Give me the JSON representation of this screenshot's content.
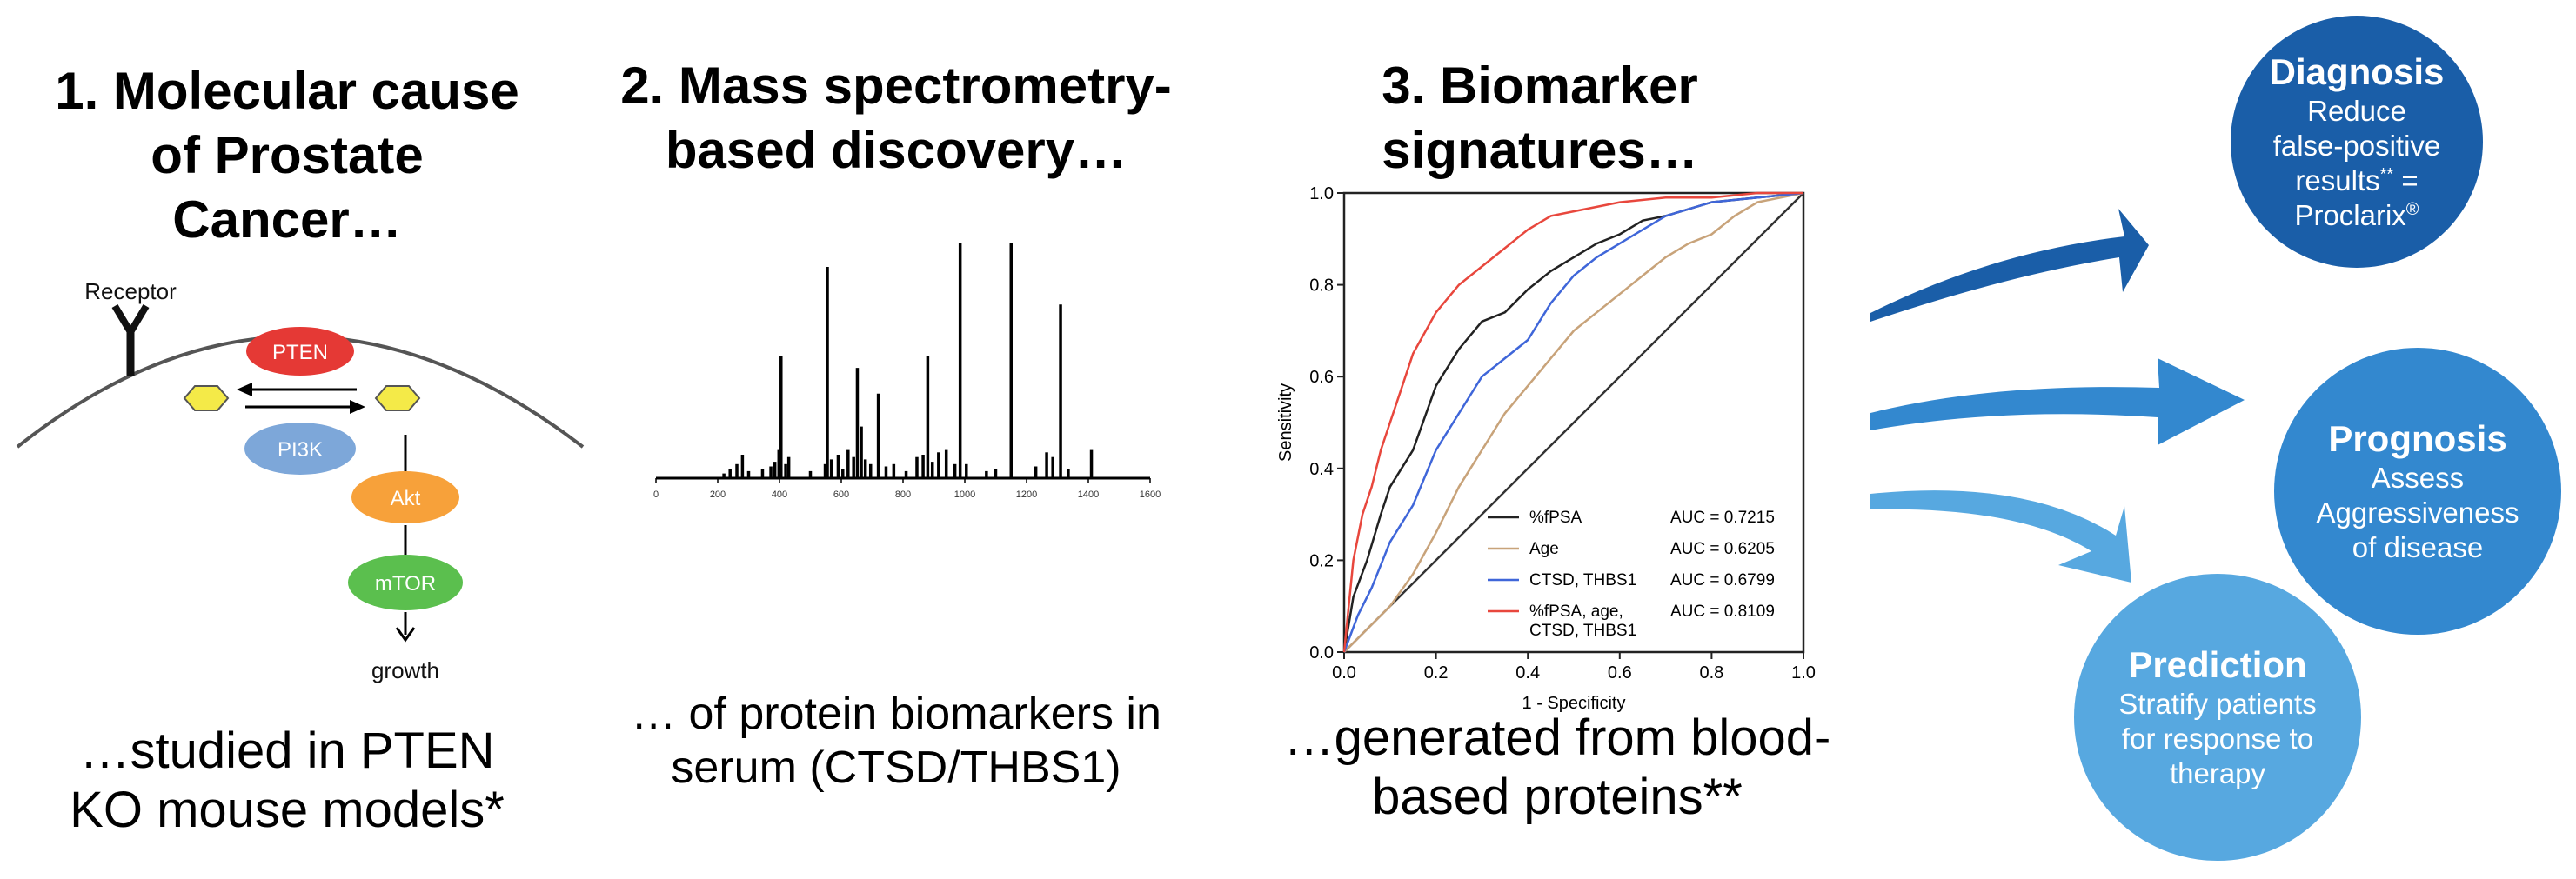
{
  "colors": {
    "diagnosis": "#1a5ea8",
    "prognosis": "#3388cf",
    "prediction": "#57a8e0",
    "pten": "#e53935",
    "pi3k": "#7da7d9",
    "akt": "#f7a13a",
    "mtor": "#5bbf4e",
    "ligand": "#f4ea48",
    "roc_fpsa": "#222222",
    "roc_age": "#c8a37a",
    "roc_ctsd": "#3f66d9",
    "roc_combo": "#e8473d"
  },
  "panel1": {
    "heading": "1. Molecular cause\nof Prostate\nCancer…",
    "receptor_label": "Receptor",
    "pten_label": "PTEN",
    "pi3k_label": "PI3K",
    "akt_label": "Akt",
    "mtor_label": "mTOR",
    "growth_label": "growth",
    "caption": "…studied in PTEN\nKO mouse models*"
  },
  "panel2": {
    "heading": "2. Mass spectrometry-\nbased discovery…",
    "caption": "… of protein biomarkers in\nserum (CTSD/THBS1)",
    "axis_ticks": [
      "0",
      "200",
      "400",
      "600",
      "800",
      "1000",
      "1200",
      "1400",
      "1600"
    ],
    "spectrum": {
      "mz_range": [
        0,
        1600
      ],
      "peaks": [
        {
          "mz": 220,
          "i": 2
        },
        {
          "mz": 240,
          "i": 4
        },
        {
          "mz": 262,
          "i": 6
        },
        {
          "mz": 280,
          "i": 10
        },
        {
          "mz": 300,
          "i": 3
        },
        {
          "mz": 345,
          "i": 4
        },
        {
          "mz": 372,
          "i": 5
        },
        {
          "mz": 385,
          "i": 7
        },
        {
          "mz": 398,
          "i": 12
        },
        {
          "mz": 405,
          "i": 52
        },
        {
          "mz": 420,
          "i": 6
        },
        {
          "mz": 430,
          "i": 9
        },
        {
          "mz": 500,
          "i": 3
        },
        {
          "mz": 548,
          "i": 6
        },
        {
          "mz": 555,
          "i": 90
        },
        {
          "mz": 568,
          "i": 8
        },
        {
          "mz": 590,
          "i": 10
        },
        {
          "mz": 605,
          "i": 4
        },
        {
          "mz": 622,
          "i": 12
        },
        {
          "mz": 640,
          "i": 9
        },
        {
          "mz": 652,
          "i": 47
        },
        {
          "mz": 665,
          "i": 22
        },
        {
          "mz": 678,
          "i": 8
        },
        {
          "mz": 695,
          "i": 6
        },
        {
          "mz": 720,
          "i": 36
        },
        {
          "mz": 745,
          "i": 5
        },
        {
          "mz": 770,
          "i": 6
        },
        {
          "mz": 810,
          "i": 3
        },
        {
          "mz": 845,
          "i": 9
        },
        {
          "mz": 865,
          "i": 10
        },
        {
          "mz": 880,
          "i": 52
        },
        {
          "mz": 895,
          "i": 7
        },
        {
          "mz": 915,
          "i": 11
        },
        {
          "mz": 940,
          "i": 12
        },
        {
          "mz": 968,
          "i": 6
        },
        {
          "mz": 985,
          "i": 100
        },
        {
          "mz": 1005,
          "i": 6
        },
        {
          "mz": 1070,
          "i": 3
        },
        {
          "mz": 1100,
          "i": 4
        },
        {
          "mz": 1150,
          "i": 100
        },
        {
          "mz": 1230,
          "i": 5
        },
        {
          "mz": 1265,
          "i": 11
        },
        {
          "mz": 1285,
          "i": 9
        },
        {
          "mz": 1310,
          "i": 74
        },
        {
          "mz": 1335,
          "i": 4
        },
        {
          "mz": 1410,
          "i": 12
        }
      ]
    }
  },
  "panel3": {
    "heading": "3. Biomarker\nsignatures…",
    "caption": "…generated from blood-\nbased proteins**"
  },
  "chart_data": {
    "type": "line",
    "title": "",
    "xlabel": "1 - Specificity",
    "ylabel": "Sensitivity",
    "xlim": [
      0,
      1
    ],
    "ylim": [
      0,
      1
    ],
    "x_ticks": [
      "0.0",
      "0.2",
      "0.4",
      "0.6",
      "0.8",
      "1.0"
    ],
    "y_ticks": [
      "0.0",
      "0.2",
      "0.4",
      "0.6",
      "0.8",
      "1.0"
    ],
    "reference_line": "diagonal",
    "series": [
      {
        "name": "%fPSA",
        "auc": "AUC = 0.7215",
        "color": "#222222",
        "x": [
          0,
          0.02,
          0.05,
          0.08,
          0.1,
          0.15,
          0.2,
          0.25,
          0.3,
          0.35,
          0.4,
          0.45,
          0.5,
          0.55,
          0.6,
          0.65,
          0.7,
          0.8,
          0.9,
          1
        ],
        "y": [
          0,
          0.12,
          0.2,
          0.3,
          0.36,
          0.44,
          0.58,
          0.66,
          0.72,
          0.74,
          0.79,
          0.83,
          0.86,
          0.89,
          0.91,
          0.94,
          0.95,
          0.98,
          0.99,
          1
        ]
      },
      {
        "name": "Age",
        "auc": "AUC = 0.6205",
        "color": "#c8a37a",
        "x": [
          0,
          0.05,
          0.1,
          0.15,
          0.2,
          0.25,
          0.3,
          0.35,
          0.4,
          0.45,
          0.5,
          0.55,
          0.6,
          0.65,
          0.7,
          0.75,
          0.8,
          0.85,
          0.9,
          1
        ],
        "y": [
          0,
          0.05,
          0.1,
          0.17,
          0.26,
          0.36,
          0.44,
          0.52,
          0.58,
          0.64,
          0.7,
          0.74,
          0.78,
          0.82,
          0.86,
          0.89,
          0.91,
          0.95,
          0.98,
          1
        ]
      },
      {
        "name": "CTSD, THBS1",
        "auc": "AUC = 0.6799",
        "color": "#3f66d9",
        "x": [
          0,
          0.03,
          0.06,
          0.1,
          0.15,
          0.2,
          0.25,
          0.3,
          0.35,
          0.4,
          0.45,
          0.5,
          0.55,
          0.6,
          0.65,
          0.7,
          0.8,
          0.9,
          1
        ],
        "y": [
          0,
          0.08,
          0.14,
          0.24,
          0.32,
          0.44,
          0.52,
          0.6,
          0.64,
          0.68,
          0.76,
          0.82,
          0.86,
          0.89,
          0.92,
          0.95,
          0.98,
          0.99,
          1
        ]
      },
      {
        "name": "%fPSA, age,\nCTSD, THBS1",
        "auc": "AUC = 0.8109",
        "color": "#e8473d",
        "x": [
          0,
          0.02,
          0.04,
          0.06,
          0.08,
          0.1,
          0.12,
          0.15,
          0.2,
          0.25,
          0.3,
          0.35,
          0.4,
          0.45,
          0.5,
          0.6,
          0.7,
          0.8,
          0.9,
          1
        ],
        "y": [
          0,
          0.2,
          0.3,
          0.36,
          0.44,
          0.5,
          0.56,
          0.65,
          0.74,
          0.8,
          0.84,
          0.88,
          0.92,
          0.95,
          0.96,
          0.98,
          0.99,
          0.99,
          1,
          1
        ]
      }
    ]
  },
  "outcomes": {
    "diagnosis": {
      "title": "Diagnosis",
      "body": "Reduce\nfalse-positive\nresults",
      "sup": "**",
      "body2": " =\nProclarix",
      "sup2": "®"
    },
    "prognosis": {
      "title": "Prognosis",
      "body": "Assess\nAggressiveness\nof disease"
    },
    "prediction": {
      "title": "Prediction",
      "body": "Stratify patients\nfor response to\ntherapy"
    }
  }
}
